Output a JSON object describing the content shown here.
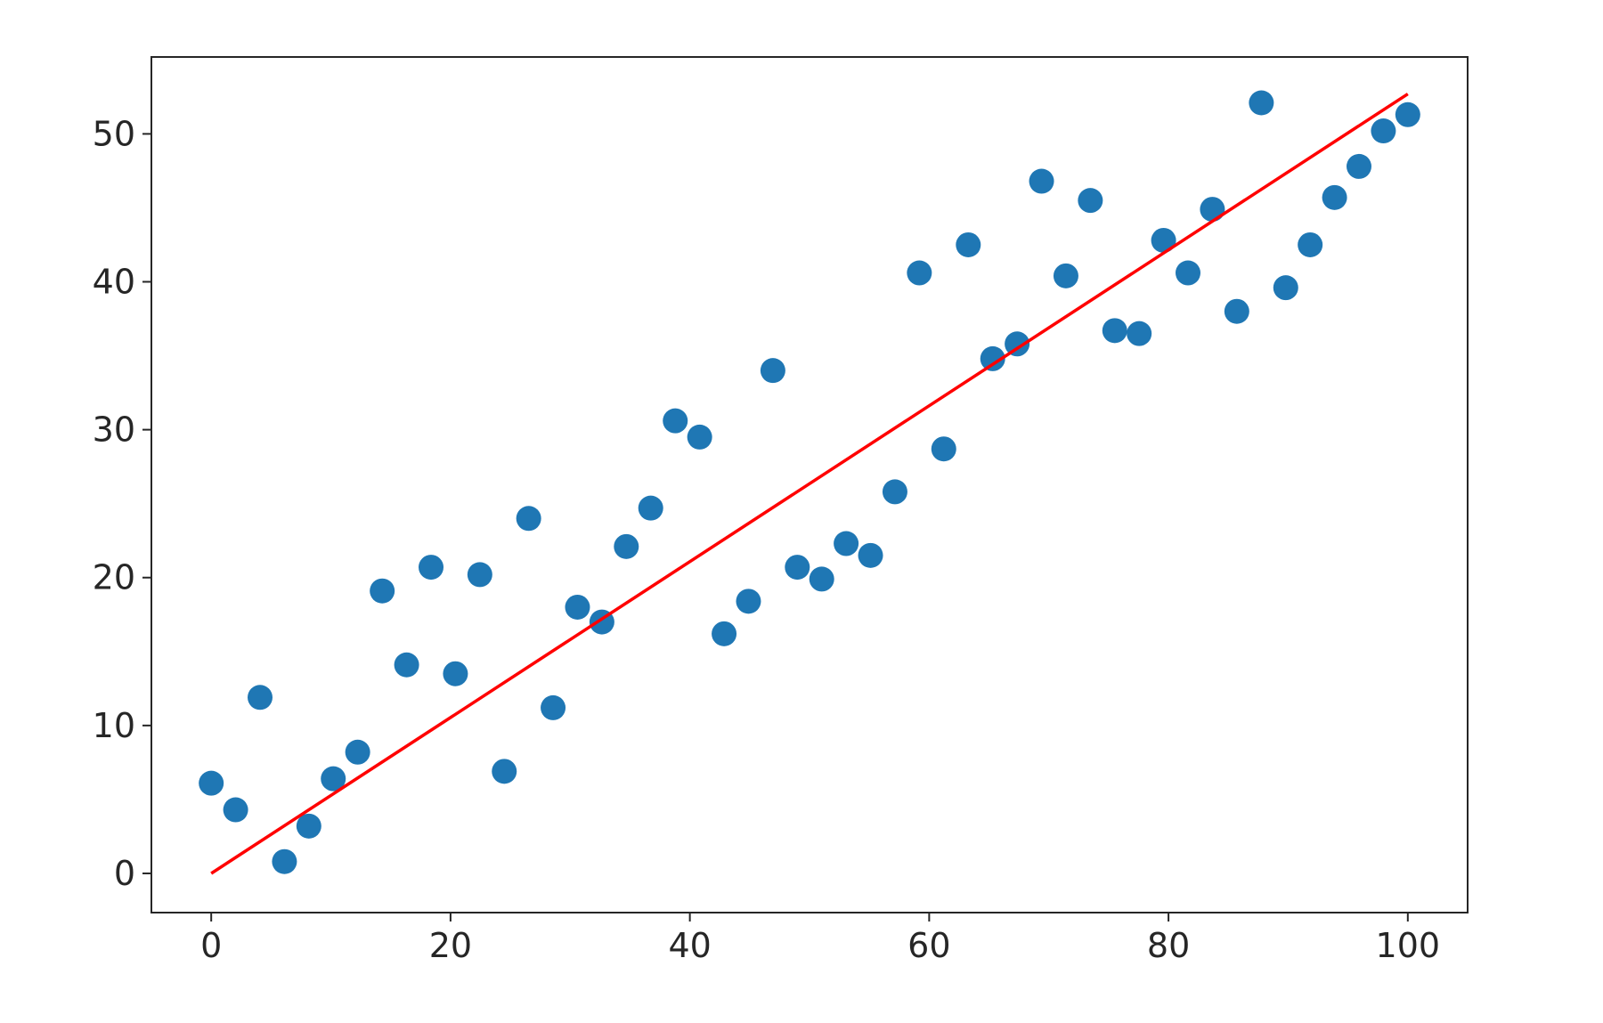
{
  "chart_data": {
    "type": "scatter",
    "xlim": [
      -5,
      105
    ],
    "ylim": [
      -2.65,
      55.2
    ],
    "xticks": [
      0,
      20,
      40,
      60,
      80,
      100
    ],
    "yticks": [
      0,
      10,
      20,
      30,
      40,
      50
    ],
    "series": [
      {
        "type": "scatter",
        "color": "#1f77b4",
        "x": [
          0,
          2.04,
          4.08,
          6.12,
          8.16,
          10.2,
          12.24,
          14.29,
          16.33,
          18.37,
          20.41,
          22.45,
          24.49,
          26.53,
          28.57,
          30.61,
          32.65,
          34.69,
          36.73,
          38.78,
          40.82,
          42.86,
          44.9,
          46.94,
          48.98,
          51.02,
          53.06,
          55.1,
          57.14,
          59.18,
          61.22,
          63.27,
          65.31,
          67.35,
          69.39,
          71.43,
          73.47,
          75.51,
          77.55,
          79.59,
          81.63,
          83.67,
          85.71,
          87.76,
          89.8,
          91.84,
          93.88,
          95.92,
          97.96,
          100
        ],
        "values": [
          6.1,
          4.3,
          11.9,
          0.8,
          3.2,
          6.4,
          8.2,
          19.1,
          14.1,
          20.7,
          13.5,
          20.2,
          6.9,
          24.0,
          11.2,
          18.0,
          17.0,
          22.1,
          24.7,
          30.6,
          29.5,
          16.2,
          18.4,
          34.0,
          20.7,
          19.9,
          22.3,
          21.5,
          25.8,
          40.6,
          28.7,
          42.5,
          34.8,
          35.8,
          46.8,
          40.4,
          45.5,
          36.7,
          36.5,
          42.8,
          40.6,
          44.9,
          38.0,
          52.1,
          39.6,
          42.5,
          45.7,
          47.8,
          50.2,
          51.3
        ]
      },
      {
        "type": "line",
        "color": "#ff0000",
        "x": [
          0,
          100
        ],
        "values": [
          0,
          52.7
        ]
      }
    ]
  }
}
